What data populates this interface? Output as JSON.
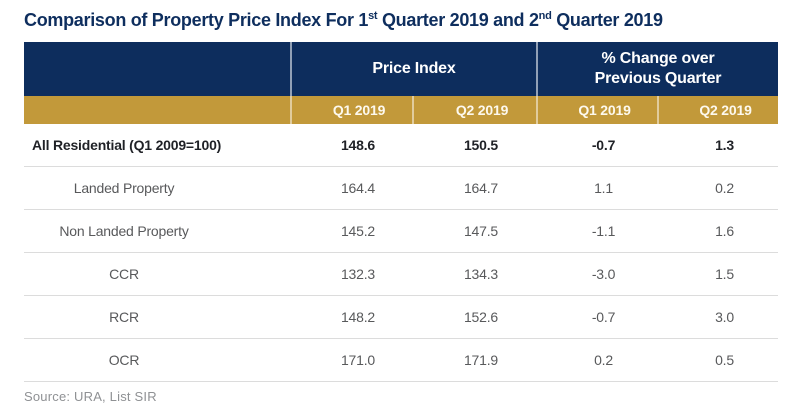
{
  "title": {
    "part1": "Comparison of Property Price Index For 1",
    "sup1": "st",
    "part2": " Quarter 2019 and 2",
    "sup2": "nd",
    "part3": " Quarter 2019"
  },
  "table": {
    "header": {
      "price_index": "Price Index",
      "pct_change_line1": "% Change over",
      "pct_change_line2": "Previous Quarter"
    },
    "subheader": [
      "Q1 2019",
      "Q2 2019",
      "Q1 2019",
      "Q2 2019"
    ],
    "rows": [
      {
        "label": "All Residential (Q1 2009=100)",
        "values": [
          "148.6",
          "150.5",
          "-0.7",
          "1.3"
        ]
      },
      {
        "label": "Landed Property",
        "values": [
          "164.4",
          "164.7",
          "1.1",
          "0.2"
        ]
      },
      {
        "label": "Non Landed Property",
        "values": [
          "145.2",
          "147.5",
          "-1.1",
          "1.6"
        ]
      },
      {
        "label": "CCR",
        "values": [
          "132.3",
          "134.3",
          "-3.0",
          "1.5"
        ]
      },
      {
        "label": "RCR",
        "values": [
          "148.2",
          "152.6",
          "-0.7",
          "3.0"
        ]
      },
      {
        "label": "OCR",
        "values": [
          "171.0",
          "171.9",
          "0.2",
          "0.5"
        ]
      }
    ]
  },
  "footer": {
    "source": "Source: URA, List SIR"
  },
  "colors": {
    "header_navy": "#0d2d5d",
    "subheader_gold": "#c2993a",
    "title_navy": "#0e2e5e",
    "emphasis_text": "#1f2126",
    "body_text": "#58595b",
    "divider_gray": "#dcdcdc",
    "source_gray": "#8f9194"
  },
  "chart_data": {
    "type": "table",
    "title": "Comparison of Property Price Index For 1st Quarter 2019 and 2nd Quarter 2019",
    "column_groups": [
      "Price Index",
      "% Change over Previous Quarter"
    ],
    "columns": [
      "Category",
      "Price Index Q1 2019",
      "Price Index Q2 2019",
      "% Change Q1 2019",
      "% Change Q2 2019"
    ],
    "rows": [
      {
        "category": "All Residential (Q1 2009=100)",
        "price_index_q1": 148.6,
        "price_index_q2": 150.5,
        "pct_change_q1": -0.7,
        "pct_change_q2": 1.3
      },
      {
        "category": "Landed Property",
        "price_index_q1": 164.4,
        "price_index_q2": 164.7,
        "pct_change_q1": 1.1,
        "pct_change_q2": 0.2
      },
      {
        "category": "Non Landed Property",
        "price_index_q1": 145.2,
        "price_index_q2": 147.5,
        "pct_change_q1": -1.1,
        "pct_change_q2": 1.6
      },
      {
        "category": "CCR",
        "price_index_q1": 132.3,
        "price_index_q2": 134.3,
        "pct_change_q1": -3.0,
        "pct_change_q2": 1.5
      },
      {
        "category": "RCR",
        "price_index_q1": 148.2,
        "price_index_q2": 152.6,
        "pct_change_q1": -0.7,
        "pct_change_q2": 3.0
      },
      {
        "category": "OCR",
        "price_index_q1": 171.0,
        "price_index_q2": 171.9,
        "pct_change_q1": 0.2,
        "pct_change_q2": 0.5
      }
    ],
    "source": "Source: URA, List SIR"
  }
}
